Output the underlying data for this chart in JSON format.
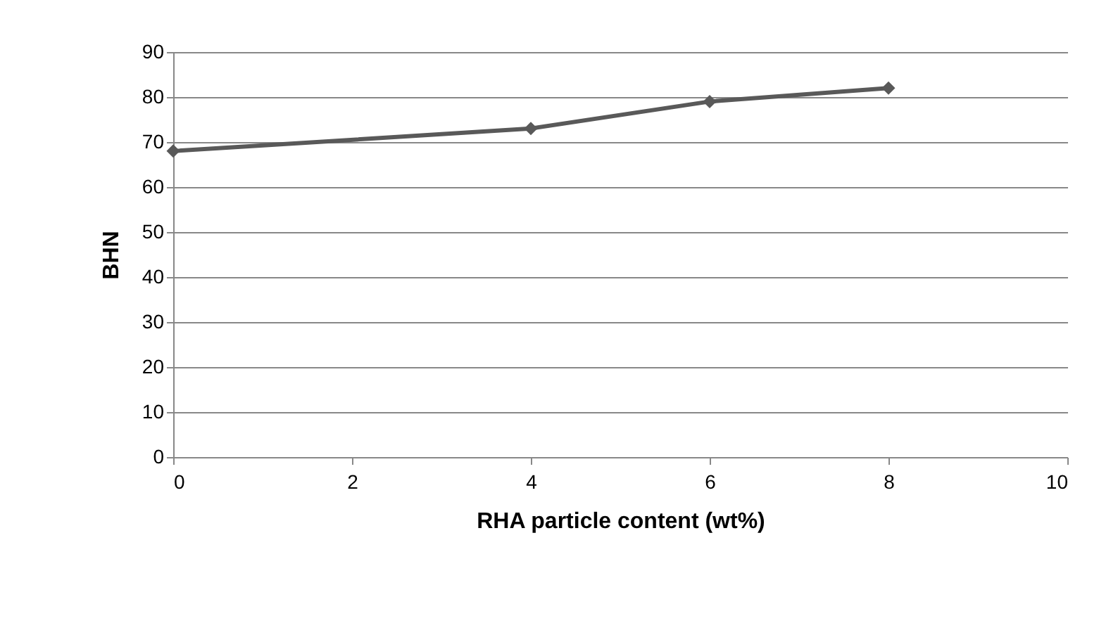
{
  "chart_data": {
    "type": "line",
    "xlabel": "RHA particle content (wt%)",
    "ylabel": "BHN",
    "x": [
      0,
      4,
      6,
      8
    ],
    "series": [
      {
        "color": "#595959",
        "values": [
          68,
          73,
          79,
          82
        ]
      }
    ],
    "xlim": [
      0,
      10
    ],
    "xticks": [
      0,
      2,
      4,
      6,
      8,
      10
    ],
    "ylim": [
      0,
      90
    ],
    "yticks": [
      0,
      10,
      20,
      30,
      40,
      50,
      60,
      70,
      80,
      90
    ],
    "grid": "y",
    "marker": "diamond",
    "line_style": "solid"
  }
}
